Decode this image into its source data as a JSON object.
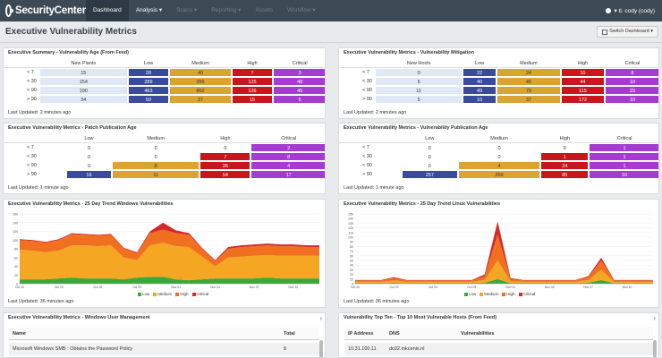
{
  "app": {
    "logo": "SecurityCenter",
    "nav": [
      "Dashboard",
      "Analysis ▾",
      "Scans ▾",
      "Reporting ▾",
      "Assets",
      "Workflow ▾"
    ],
    "user": "▾ tl. cody (cody)"
  },
  "page": {
    "title": "Executive Vulnerability Metrics",
    "switch_button": "Switch Dashboard ▾"
  },
  "severity_headers": [
    "Low",
    "Medium",
    "High",
    "Critical"
  ],
  "panels": {
    "age_feed": {
      "title": "Executive Summary - Vulnerability Age (From Feed)",
      "first_header": "New Plants",
      "rows": [
        {
          "label": "< 7",
          "values": [
            "15",
            "28",
            "40",
            "7",
            "3"
          ]
        },
        {
          "label": "< 30",
          "values": [
            "154",
            "289",
            "356",
            "125",
            "48"
          ]
        },
        {
          "label": "< 90",
          "values": [
            "190",
            "463",
            "862",
            "126",
            "45"
          ]
        },
        {
          "label": "> 90",
          "values": [
            "34",
            "50",
            "37",
            "15",
            "5"
          ]
        }
      ],
      "updated": "Last Updated: 2 minutes ago"
    },
    "mitigation": {
      "title": "Executive Vulnerability Metrics - Vulnerability Mitigation",
      "first_header": "New Hosts",
      "rows": [
        {
          "label": "< 7",
          "values": [
            "0",
            "22",
            "24",
            "10",
            "8"
          ]
        },
        {
          "label": "< 30",
          "values": [
            "5",
            "40",
            "45",
            "44",
            "19"
          ]
        },
        {
          "label": "< 90",
          "values": [
            "11",
            "49",
            "79",
            "115",
            "23"
          ]
        },
        {
          "label": "> 90",
          "values": [
            "5",
            "10",
            "37",
            "172",
            "10"
          ]
        }
      ],
      "updated": "Last Updated: 2 minutes ago"
    },
    "patch_age": {
      "title": "Executive Vulnerability Metrics - Patch Publication Age",
      "rows": [
        {
          "label": "< 7",
          "values": [
            "0",
            "0",
            "0",
            "2"
          ]
        },
        {
          "label": "< 30",
          "values": [
            "0",
            "0",
            "7",
            "8"
          ]
        },
        {
          "label": "< 90",
          "values": [
            "0",
            "8",
            "26",
            "4"
          ]
        },
        {
          "label": "> 90",
          "values": [
            "16",
            "11",
            "54",
            "17"
          ]
        }
      ],
      "updated": "Last Updated: 1 minute ago"
    },
    "pub_age": {
      "title": "Executive Vulnerability Metrics - Vulnerability Publication Age",
      "rows": [
        {
          "label": "< 7",
          "values": [
            "0",
            "0",
            "0",
            "1"
          ]
        },
        {
          "label": "< 30",
          "values": [
            "0",
            "0",
            "1",
            "1"
          ]
        },
        {
          "label": "< 90",
          "values": [
            "0",
            "4",
            "24",
            "1"
          ]
        },
        {
          "label": "> 90",
          "values": [
            "257",
            "259",
            "85",
            "16"
          ]
        }
      ],
      "updated": "Last Updated: 1 minute ago"
    },
    "trend_windows": {
      "title": "Executive Vulnerability Metrics - 25 Day Trend Windows Vulnerabilities",
      "updated": "Last Updated: 36 minutes ago"
    },
    "trend_linux": {
      "title": "Executive Vulnerability Metrics - 25 Day Trend Linux Vulnerabilities",
      "updated": "Last Updated: 36 minutes ago"
    },
    "user_mgmt": {
      "title": "Executive Vulnerability Metrics - Windows User Management",
      "columns": [
        "Name",
        "Total"
      ],
      "rows": [
        [
          "Microsoft Windows SMB : Obtains the Password Policy",
          "8"
        ]
      ]
    },
    "top_ten": {
      "title": "Vulnerability Top Ten - Top 10 Most Vulnerable Hosts (From Feed)",
      "columns": [
        "IP Address",
        "DNS",
        "Vulnerabilities"
      ],
      "rows": [
        [
          "10.31.100.11",
          "dc02.mkcenis.nl",
          ""
        ]
      ]
    }
  },
  "legend": [
    "Low",
    "Medium",
    "High",
    "Critical"
  ],
  "colors": {
    "low": "#3a4a9c",
    "medium": "#dba431",
    "high": "#c9161c",
    "critical": "#a53bd1",
    "info": "#dfe9f5"
  },
  "chart_data": [
    {
      "type": "area",
      "title": "Executive Vulnerability Metrics - 25 Day Trend Windows Vulnerabilities",
      "ylim": [
        0,
        160
      ],
      "yticks": [
        0,
        20,
        40,
        60,
        80,
        100,
        120,
        140,
        160
      ],
      "xticks": [
        "Oct 20",
        "Oct 21",
        "Oct 22",
        "Oct 23",
        "Oct 24",
        "Oct 25",
        "Oct 26",
        "Oct 27",
        "Oct 28",
        "Oct 29",
        "Oct 30",
        "Oct 31",
        "Nov 01",
        "Nov 02",
        "Nov 03",
        "Nov 04",
        "Nov 05",
        "Nov 06",
        "Nov 07",
        "Nov 08",
        "Nov 09",
        "Nov 10",
        "Nov 11",
        "Nov 12"
      ],
      "series": [
        {
          "name": "Low",
          "values": [
            10,
            10,
            10,
            12,
            14,
            12,
            12,
            12,
            10,
            14,
            16,
            16,
            10,
            8,
            10,
            12,
            12,
            12,
            12,
            14,
            12,
            12,
            12,
            12
          ]
        },
        {
          "name": "Medium",
          "values": [
            68,
            66,
            62,
            64,
            74,
            76,
            74,
            76,
            50,
            40,
            72,
            78,
            76,
            76,
            52,
            28,
            48,
            50,
            52,
            52,
            52,
            52,
            52,
            52
          ]
        },
        {
          "name": "High",
          "values": [
            22,
            22,
            22,
            24,
            26,
            24,
            24,
            24,
            20,
            16,
            28,
            30,
            30,
            28,
            18,
            12,
            20,
            22,
            22,
            22,
            22,
            22,
            20,
            20
          ]
        },
        {
          "name": "Critical",
          "values": [
            2,
            2,
            2,
            2,
            2,
            2,
            2,
            2,
            2,
            2,
            4,
            16,
            6,
            4,
            2,
            2,
            4,
            4,
            4,
            4,
            4,
            4,
            4,
            4
          ]
        }
      ]
    },
    {
      "type": "area",
      "title": "Executive Vulnerability Metrics - 25 Day Trend Linux Vulnerabilities",
      "ylim": [
        0,
        150
      ],
      "yticks": [
        0,
        10,
        20,
        30,
        40,
        50,
        60,
        70,
        80,
        90,
        100,
        110,
        120,
        130,
        140,
        150
      ],
      "xticks": [
        "Oct 20",
        "Oct 21",
        "Oct 22",
        "Oct 23",
        "Oct 24",
        "Oct 25",
        "Oct 26",
        "Oct 27",
        "Oct 28",
        "Oct 29",
        "Oct 30",
        "Oct 31",
        "Nov 01",
        "Nov 02",
        "Nov 03",
        "Nov 04",
        "Nov 05",
        "Nov 06",
        "Nov 07",
        "Nov 08",
        "Nov 09",
        "Nov 10",
        "Nov 11",
        "Nov 12"
      ],
      "series": [
        {
          "name": "Low",
          "values": [
            1,
            1,
            1,
            2,
            1,
            1,
            1,
            1,
            1,
            1,
            2,
            10,
            1,
            1,
            1,
            1,
            1,
            1,
            2,
            8,
            1,
            1,
            1,
            1
          ]
        },
        {
          "name": "Medium",
          "values": [
            3,
            3,
            3,
            5,
            3,
            3,
            3,
            3,
            3,
            3,
            6,
            40,
            4,
            3,
            3,
            3,
            3,
            3,
            6,
            22,
            3,
            3,
            3,
            3
          ]
        },
        {
          "name": "High",
          "values": [
            3,
            3,
            3,
            5,
            3,
            3,
            3,
            3,
            3,
            3,
            8,
            56,
            5,
            3,
            3,
            3,
            3,
            3,
            6,
            20,
            3,
            3,
            3,
            3
          ]
        },
        {
          "name": "Critical",
          "values": [
            1,
            1,
            1,
            2,
            1,
            1,
            1,
            1,
            1,
            1,
            4,
            28,
            2,
            1,
            1,
            1,
            1,
            1,
            2,
            6,
            1,
            1,
            1,
            1
          ]
        }
      ]
    }
  ]
}
